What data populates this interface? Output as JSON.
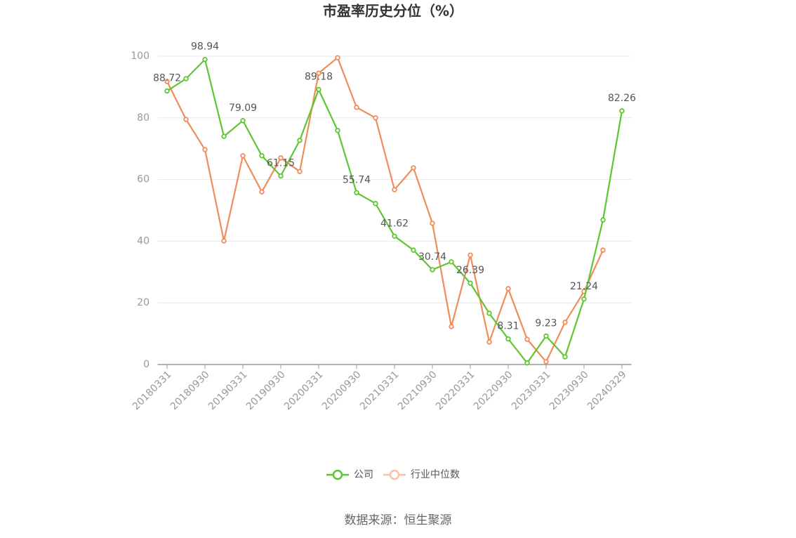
{
  "chart_data": {
    "type": "line",
    "title": "市盈率历史分位（%）",
    "categories": [
      "20180331",
      null,
      "20180930",
      null,
      "20190331",
      null,
      "20190930",
      null,
      "20200331",
      null,
      "20200930",
      null,
      "20210331",
      null,
      "20210930",
      null,
      "20220331",
      null,
      "20220930",
      null,
      "20230331",
      null,
      "20230930",
      null,
      "20240329"
    ],
    "series": [
      {
        "name": "公司",
        "color": "#5cc72f",
        "values": [
          88.72,
          92.7,
          98.94,
          74.0,
          79.09,
          67.7,
          61.15,
          72.7,
          89.18,
          75.9,
          55.74,
          52.2,
          41.62,
          37.1,
          30.74,
          33.3,
          26.39,
          16.6,
          8.31,
          0.5,
          9.23,
          2.5,
          21.24,
          46.9,
          82.26
        ]
      },
      {
        "name": "行业中位数",
        "color": "#f08c5a",
        "values": [
          91.8,
          79.5,
          69.7,
          40.1,
          67.7,
          56.0,
          67.0,
          62.6,
          94.5,
          99.5,
          83.4,
          80.0,
          56.7,
          63.8,
          45.8,
          12.3,
          35.5,
          7.3,
          24.6,
          8.2,
          0.9,
          13.7,
          23.7,
          37.1,
          null
        ]
      }
    ],
    "ylim": [
      0,
      100
    ],
    "yticks": [
      0,
      20,
      40,
      60,
      80,
      100
    ],
    "grid": true,
    "source": "数据来源：恒生聚源"
  }
}
